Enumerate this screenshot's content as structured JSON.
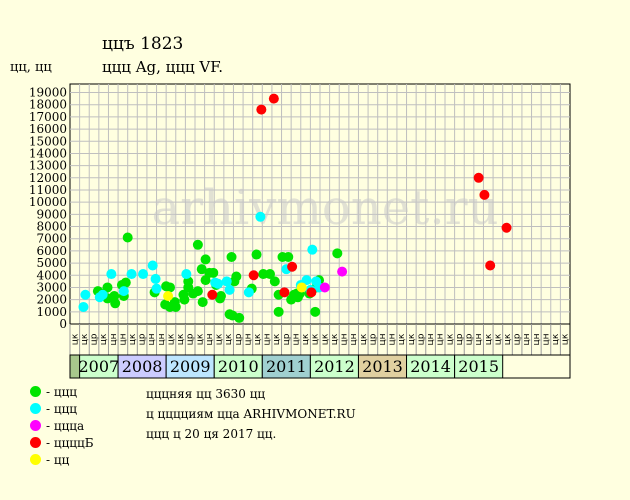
{
  "header": {
    "title": "ццъ 1823",
    "subtitle": "ццц Ag, ццц VF.",
    "unit": "цц, цц"
  },
  "watermark": "arhivmonet.ru",
  "legend": [
    {
      "label": "- ццц",
      "color": "#00e400"
    },
    {
      "label": "- ццц",
      "color": "#00ffff"
    },
    {
      "label": "- ццца",
      "color": "#ff00ff"
    },
    {
      "label": "- ццццБ",
      "color": "#ff0000"
    },
    {
      "label": "- цц",
      "color": "#ffff00"
    }
  ],
  "footer": {
    "line1": "цццняя цц 3630 цц",
    "line2": "ц цццциям цца ARHIVMONET.RU",
    "line3": "ццц ц 20 ця 2017 цц."
  },
  "chart_data": {
    "type": "scatter",
    "ylim": [
      0,
      19000
    ],
    "yticks": [
      0,
      1000,
      2000,
      3000,
      4000,
      5000,
      6000,
      7000,
      8000,
      9000,
      10000,
      11000,
      12000,
      13000,
      14000,
      15000,
      16000,
      17000,
      18000,
      19000
    ],
    "month_labels": [
      "цк",
      "цк",
      "цр",
      "цк",
      "цн",
      "цн",
      "цк",
      "цр",
      "цн",
      "цн",
      "цк",
      "цк",
      "цр",
      "цк",
      "цн",
      "цк",
      "цк",
      "цр",
      "цн",
      "цк",
      "цн",
      "цк",
      "цр",
      "цн",
      "цк",
      "цк",
      "цк",
      "цк",
      "цн",
      "цн",
      "цк",
      "цр",
      "цн",
      "цн",
      "цк",
      "цк",
      "цр",
      "цн",
      "цн",
      "цк",
      "цр",
      "цр",
      "цн",
      "цк",
      "цк",
      "цк",
      "цр",
      "цн",
      "цн",
      "цн",
      "цк",
      "цк"
    ],
    "years": [
      {
        "label": "2007",
        "start": 1,
        "end": 5,
        "color": "#ccffcc"
      },
      {
        "label": "2008",
        "start": 5,
        "end": 10,
        "color": "#ccccff"
      },
      {
        "label": "2009",
        "start": 10,
        "end": 15,
        "color": "#bde6ff"
      },
      {
        "label": "2010",
        "start": 15,
        "end": 20,
        "color": "#ccffcc"
      },
      {
        "label": "2011",
        "start": 20,
        "end": 25,
        "color": "#a0d0d0"
      },
      {
        "label": "2012",
        "start": 25,
        "end": 30,
        "color": "#ccffcc"
      },
      {
        "label": "2013",
        "start": 30,
        "end": 35,
        "color": "#e0d0a0"
      },
      {
        "label": "2014",
        "start": 35,
        "end": 40,
        "color": "#ccffcc"
      },
      {
        "label": "2015",
        "start": 40,
        "end": 45,
        "color": "#ccffcc"
      }
    ],
    "series": [
      {
        "color": "#00e400",
        "points": [
          [
            2.9,
            2700
          ],
          [
            3.4,
            2500
          ],
          [
            3.9,
            2100
          ],
          [
            3.9,
            3000
          ],
          [
            4.6,
            2300
          ],
          [
            4.7,
            1700
          ],
          [
            5.4,
            3200
          ],
          [
            5.6,
            2300
          ],
          [
            5.8,
            3400
          ],
          [
            6.0,
            7100
          ],
          [
            8.8,
            2600
          ],
          [
            9.9,
            1600
          ],
          [
            10.0,
            3100
          ],
          [
            10.4,
            3000
          ],
          [
            10.4,
            1400
          ],
          [
            10.9,
            1800
          ],
          [
            11.0,
            1400
          ],
          [
            11.8,
            2400
          ],
          [
            11.9,
            2000
          ],
          [
            12.3,
            3000
          ],
          [
            12.3,
            3500
          ],
          [
            12.8,
            2500
          ],
          [
            13.3,
            6500
          ],
          [
            13.3,
            2700
          ],
          [
            13.7,
            4500
          ],
          [
            13.8,
            1800
          ],
          [
            14.1,
            5300
          ],
          [
            14.1,
            3600
          ],
          [
            14.5,
            4200
          ],
          [
            14.9,
            4200
          ],
          [
            15.2,
            3200
          ],
          [
            15.6,
            2100
          ],
          [
            15.7,
            2300
          ],
          [
            16.6,
            800
          ],
          [
            16.8,
            5500
          ],
          [
            16.9,
            700
          ],
          [
            17.1,
            3500
          ],
          [
            17.3,
            3900
          ],
          [
            17.6,
            500
          ],
          [
            18.9,
            2900
          ],
          [
            19.4,
            5700
          ],
          [
            20.1,
            4100
          ],
          [
            20.8,
            4100
          ],
          [
            21.3,
            3500
          ],
          [
            21.7,
            2400
          ],
          [
            21.7,
            1000
          ],
          [
            22.1,
            5500
          ],
          [
            22.7,
            5500
          ],
          [
            23.0,
            2000
          ],
          [
            23.3,
            2400
          ],
          [
            23.6,
            2500
          ],
          [
            23.7,
            2200
          ],
          [
            23.9,
            2500
          ],
          [
            24.9,
            2500
          ],
          [
            25.5,
            1000
          ],
          [
            25.6,
            3000
          ],
          [
            25.9,
            3600
          ],
          [
            27.8,
            5800
          ]
        ]
      },
      {
        "color": "#00ffff",
        "points": [
          [
            1.4,
            1400
          ],
          [
            1.6,
            2400
          ],
          [
            3.1,
            2200
          ],
          [
            3.4,
            2400
          ],
          [
            4.3,
            4100
          ],
          [
            5.6,
            2700
          ],
          [
            6.4,
            4100
          ],
          [
            7.6,
            4100
          ],
          [
            8.6,
            4800
          ],
          [
            8.9,
            3700
          ],
          [
            9.0,
            2900
          ],
          [
            12.1,
            4100
          ],
          [
            15.1,
            3400
          ],
          [
            15.4,
            3300
          ],
          [
            16.3,
            3500
          ],
          [
            16.6,
            2800
          ],
          [
            18.6,
            2600
          ],
          [
            19.8,
            8800
          ],
          [
            22.5,
            4500
          ],
          [
            24.0,
            3200
          ],
          [
            24.6,
            3600
          ],
          [
            25.0,
            2800
          ],
          [
            25.2,
            6100
          ],
          [
            25.6,
            3500
          ],
          [
            25.9,
            3000
          ]
        ]
      },
      {
        "color": "#ff00ff",
        "points": [
          [
            26.5,
            3000
          ],
          [
            28.3,
            4300
          ]
        ]
      },
      {
        "color": "#ff0000",
        "points": [
          [
            14.8,
            2400
          ],
          [
            19.1,
            4000
          ],
          [
            19.9,
            17600
          ],
          [
            21.2,
            18500
          ],
          [
            22.3,
            2600
          ],
          [
            23.1,
            4700
          ],
          [
            25.1,
            2600
          ],
          [
            42.5,
            12000
          ],
          [
            43.1,
            10600
          ],
          [
            43.7,
            4800
          ],
          [
            45.4,
            7900
          ]
        ]
      },
      {
        "color": "#ffff00",
        "points": [
          [
            10.2,
            2300
          ],
          [
            24.1,
            3000
          ]
        ]
      }
    ]
  }
}
